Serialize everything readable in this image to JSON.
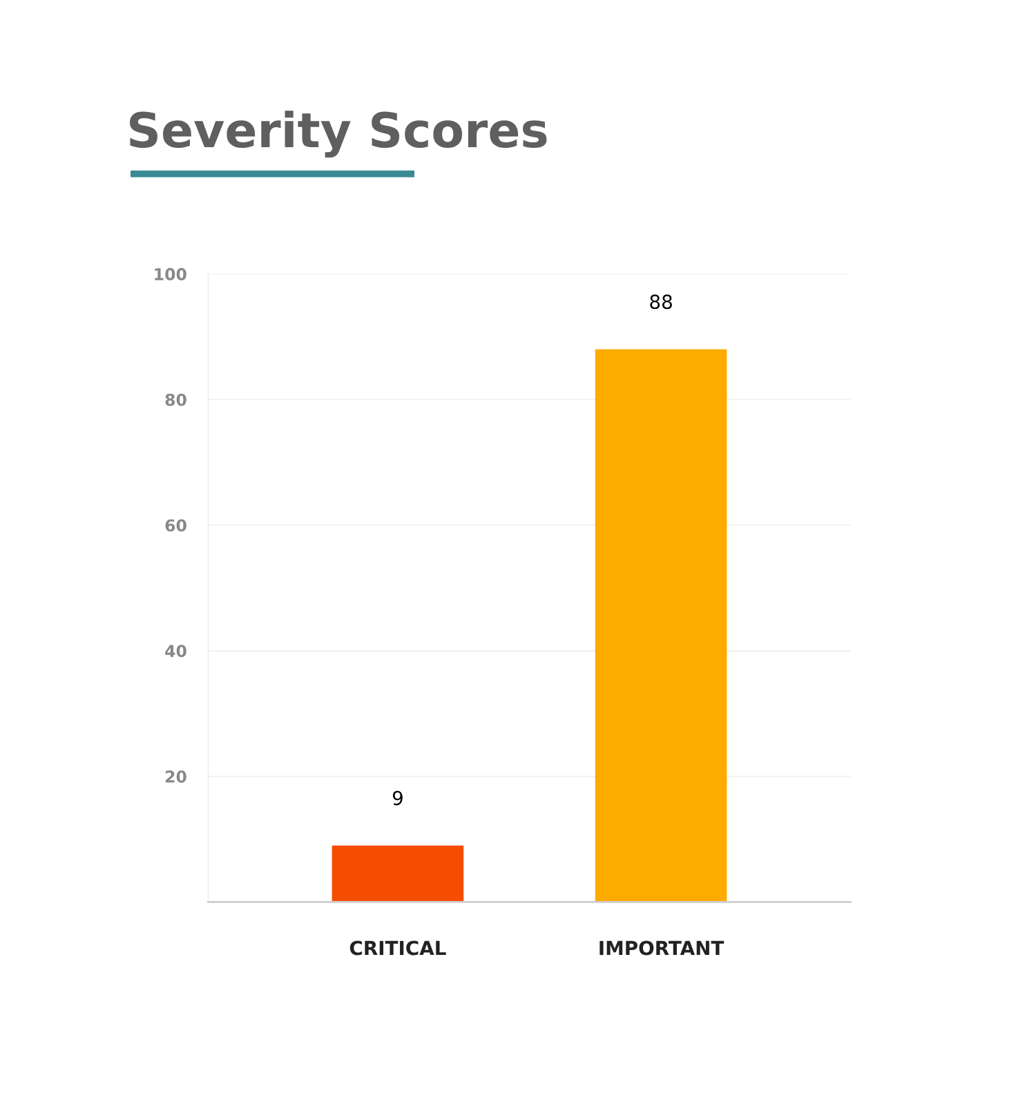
{
  "chart_data": {
    "type": "bar",
    "title": "Severity Scores",
    "categories": [
      "CRITICAL",
      "IMPORTANT"
    ],
    "values": [
      9,
      88
    ],
    "colors": [
      "#f54c00",
      "#fdab00"
    ],
    "ylim": [
      0,
      100
    ],
    "yticks": [
      20,
      40,
      60,
      80,
      100
    ],
    "grid": "y",
    "data_labels": true
  }
}
